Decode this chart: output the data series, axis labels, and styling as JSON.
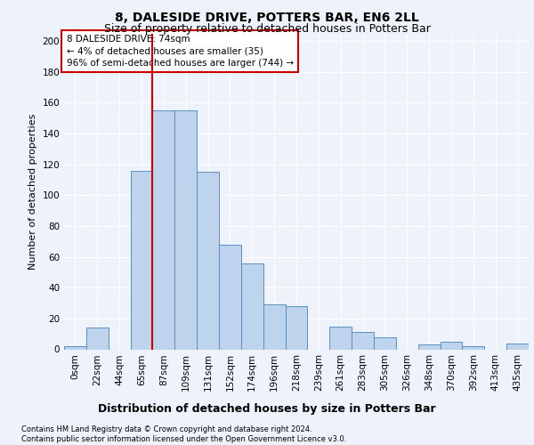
{
  "title": "8, DALESIDE DRIVE, POTTERS BAR, EN6 2LL",
  "subtitle": "Size of property relative to detached houses in Potters Bar",
  "xlabel": "Distribution of detached houses by size in Potters Bar",
  "ylabel": "Number of detached properties",
  "bar_labels": [
    "0sqm",
    "22sqm",
    "44sqm",
    "65sqm",
    "87sqm",
    "109sqm",
    "131sqm",
    "152sqm",
    "174sqm",
    "196sqm",
    "218sqm",
    "239sqm",
    "261sqm",
    "283sqm",
    "305sqm",
    "326sqm",
    "348sqm",
    "370sqm",
    "392sqm",
    "413sqm",
    "435sqm"
  ],
  "bar_heights": [
    2,
    14,
    0,
    116,
    155,
    155,
    115,
    68,
    56,
    29,
    28,
    0,
    15,
    11,
    8,
    0,
    3,
    5,
    2,
    0,
    4
  ],
  "bar_color": "#bdd4ec",
  "bar_edge_color": "#5b8ec4",
  "vline_x": 3.5,
  "vline_color": "#cc0000",
  "ylim": [
    0,
    205
  ],
  "yticks": [
    0,
    20,
    40,
    60,
    80,
    100,
    120,
    140,
    160,
    180,
    200
  ],
  "annotation_text": "8 DALESIDE DRIVE: 74sqm\n← 4% of detached houses are smaller (35)\n96% of semi-detached houses are larger (744) →",
  "annotation_box_facecolor": "#ffffff",
  "annotation_box_edgecolor": "#cc0000",
  "footer_text": "Contains HM Land Registry data © Crown copyright and database right 2024.\nContains public sector information licensed under the Open Government Licence v3.0.",
  "bg_color": "#eef2fa",
  "grid_color": "#ffffff",
  "title_fontsize": 10,
  "subtitle_fontsize": 9,
  "ylabel_fontsize": 8,
  "xlabel_fontsize": 9,
  "tick_fontsize": 7.5,
  "footer_fontsize": 6,
  "ann_fontsize": 7.5
}
